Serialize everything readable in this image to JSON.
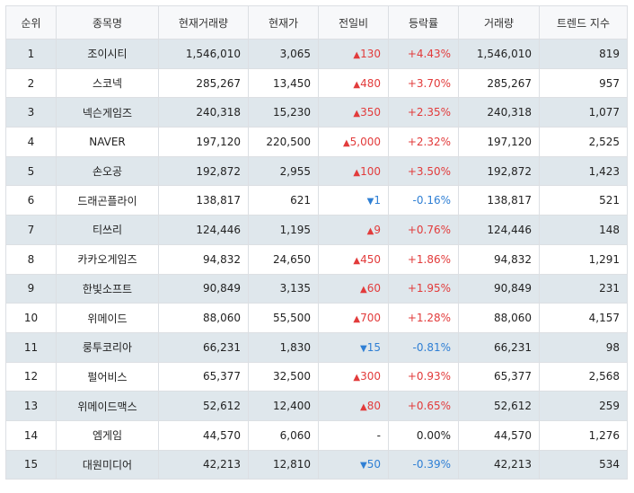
{
  "headers": [
    "순위",
    "종목명",
    "현재거래량",
    "현재가",
    "전일비",
    "등락률",
    "거래량",
    "트렌드 지수"
  ],
  "colors": {
    "up": "#e23b3b",
    "down": "#2f7fd4",
    "row_alt": "#dfe7ec",
    "border": "#dcdfe3"
  },
  "rows": [
    {
      "rank": "1",
      "name": "조이시티",
      "cur_volume": "1,546,010",
      "price": "3,065",
      "dir": "up",
      "arrow": "▲",
      "change": "130",
      "rate": "+4.43%",
      "volume": "1,546,010",
      "trend": "819"
    },
    {
      "rank": "2",
      "name": "스코넥",
      "cur_volume": "285,267",
      "price": "13,450",
      "dir": "up",
      "arrow": "▲",
      "change": "480",
      "rate": "+3.70%",
      "volume": "285,267",
      "trend": "957"
    },
    {
      "rank": "3",
      "name": "넥슨게임즈",
      "cur_volume": "240,318",
      "price": "15,230",
      "dir": "up",
      "arrow": "▲",
      "change": "350",
      "rate": "+2.35%",
      "volume": "240,318",
      "trend": "1,077"
    },
    {
      "rank": "4",
      "name": "NAVER",
      "cur_volume": "197,120",
      "price": "220,500",
      "dir": "up",
      "arrow": "▲",
      "change": "5,000",
      "rate": "+2.32%",
      "volume": "197,120",
      "trend": "2,525"
    },
    {
      "rank": "5",
      "name": "손오공",
      "cur_volume": "192,872",
      "price": "2,955",
      "dir": "up",
      "arrow": "▲",
      "change": "100",
      "rate": "+3.50%",
      "volume": "192,872",
      "trend": "1,423"
    },
    {
      "rank": "6",
      "name": "드래곤플라이",
      "cur_volume": "138,817",
      "price": "621",
      "dir": "down",
      "arrow": "▼",
      "change": "1",
      "rate": "-0.16%",
      "volume": "138,817",
      "trend": "521"
    },
    {
      "rank": "7",
      "name": "티쓰리",
      "cur_volume": "124,446",
      "price": "1,195",
      "dir": "up",
      "arrow": "▲",
      "change": "9",
      "rate": "+0.76%",
      "volume": "124,446",
      "trend": "148"
    },
    {
      "rank": "8",
      "name": "카카오게임즈",
      "cur_volume": "94,832",
      "price": "24,650",
      "dir": "up",
      "arrow": "▲",
      "change": "450",
      "rate": "+1.86%",
      "volume": "94,832",
      "trend": "1,291"
    },
    {
      "rank": "9",
      "name": "한빛소프트",
      "cur_volume": "90,849",
      "price": "3,135",
      "dir": "up",
      "arrow": "▲",
      "change": "60",
      "rate": "+1.95%",
      "volume": "90,849",
      "trend": "231"
    },
    {
      "rank": "10",
      "name": "위메이드",
      "cur_volume": "88,060",
      "price": "55,500",
      "dir": "up",
      "arrow": "▲",
      "change": "700",
      "rate": "+1.28%",
      "volume": "88,060",
      "trend": "4,157"
    },
    {
      "rank": "11",
      "name": "룽투코리아",
      "cur_volume": "66,231",
      "price": "1,830",
      "dir": "down",
      "arrow": "▼",
      "change": "15",
      "rate": "-0.81%",
      "volume": "66,231",
      "trend": "98"
    },
    {
      "rank": "12",
      "name": "펄어비스",
      "cur_volume": "65,377",
      "price": "32,500",
      "dir": "up",
      "arrow": "▲",
      "change": "300",
      "rate": "+0.93%",
      "volume": "65,377",
      "trend": "2,568"
    },
    {
      "rank": "13",
      "name": "위메이드맥스",
      "cur_volume": "52,612",
      "price": "12,400",
      "dir": "up",
      "arrow": "▲",
      "change": "80",
      "rate": "+0.65%",
      "volume": "52,612",
      "trend": "259"
    },
    {
      "rank": "14",
      "name": "엠게임",
      "cur_volume": "44,570",
      "price": "6,060",
      "dir": "flat",
      "arrow": "",
      "change": "-",
      "rate": "0.00%",
      "volume": "44,570",
      "trend": "1,276"
    },
    {
      "rank": "15",
      "name": "대원미디어",
      "cur_volume": "42,213",
      "price": "12,810",
      "dir": "down",
      "arrow": "▼",
      "change": "50",
      "rate": "-0.39%",
      "volume": "42,213",
      "trend": "534"
    }
  ]
}
